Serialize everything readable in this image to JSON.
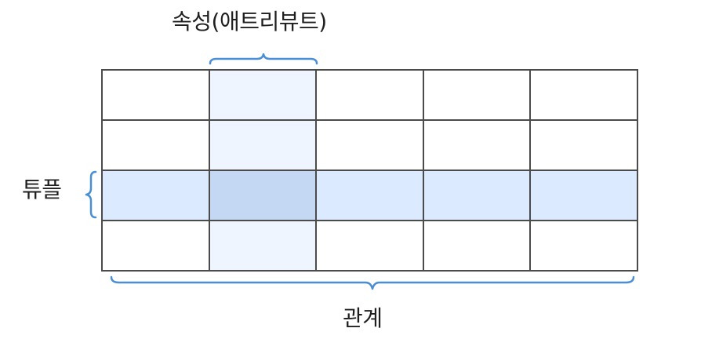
{
  "labels": {
    "attribute": "속성(애트리뷰트)",
    "tuple": "튜플",
    "relation": "관계"
  },
  "grid": {
    "rows": 4,
    "cols": 5,
    "highlight_column": 1,
    "highlight_row": 2
  },
  "colors": {
    "border": "#4b4b4b",
    "brace": "#4a8fd6",
    "column_fill": "#eef5ff",
    "row_fill": "#dceaff",
    "intersection_fill": "#c4d8f3",
    "text": "#1f1f1f"
  }
}
